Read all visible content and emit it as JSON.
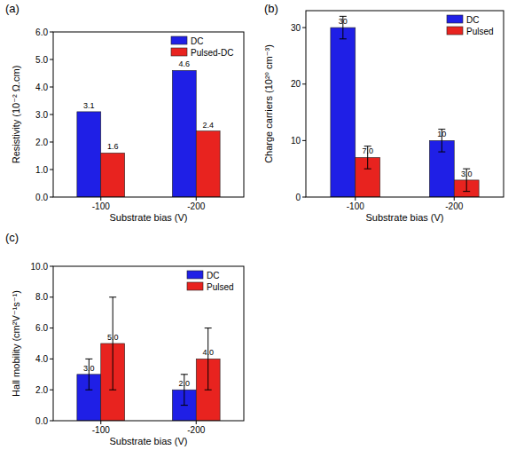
{
  "chart_data": [
    {
      "type": "bar",
      "title": "(a)",
      "x_label": "Substrate bias (V)",
      "y_label": "Resistivity (10⁻² Ω.cm)",
      "categories": [
        "-100",
        "-200"
      ],
      "series": [
        {
          "name": "DC",
          "color": "#1f1fe6",
          "values": [
            3.1,
            4.6
          ]
        },
        {
          "name": "Pulsed-DC",
          "color": "#e8231f",
          "values": [
            1.6,
            2.4
          ]
        }
      ],
      "ylim": [
        0,
        6
      ],
      "yticks": [
        {
          "value": 0,
          "label": "0.0"
        },
        {
          "value": 1,
          "label": "1.0"
        },
        {
          "value": 2,
          "label": "2.0"
        },
        {
          "value": 3,
          "label": "3.0"
        },
        {
          "value": 4,
          "label": "4.0"
        },
        {
          "value": 5,
          "label": "5.0"
        },
        {
          "value": 6,
          "label": "6.0"
        }
      ],
      "legend": "upper right",
      "data_labels": true
    },
    {
      "type": "bar",
      "title": "(b)",
      "x_label": "Substrate bias (V)",
      "y_label": "Charge carriers (10²⁰ cm⁻³)",
      "categories": [
        "-100",
        "-200"
      ],
      "series": [
        {
          "name": "DC",
          "color": "#1f1fe6",
          "values": [
            30,
            10
          ],
          "errors": [
            2,
            2
          ]
        },
        {
          "name": "Pulsed",
          "color": "#e8231f",
          "values": [
            7,
            3
          ],
          "value_labels": [
            "7.0",
            "3.0"
          ],
          "errors": [
            2,
            2
          ]
        }
      ],
      "ylim": [
        0,
        33
      ],
      "yticks": [
        0,
        10,
        20,
        30
      ],
      "legend": "upper right",
      "data_labels": true
    },
    {
      "type": "bar",
      "title": "(c)",
      "x_label": "Substrate bias (V)",
      "y_label": "Hall mobility (cm²V⁻¹s⁻¹)",
      "categories": [
        "-100",
        "-200"
      ],
      "series": [
        {
          "name": "DC",
          "color": "#1f1fe6",
          "values": [
            3,
            2
          ],
          "value_labels": [
            "3.0",
            "2.0"
          ],
          "errors": [
            1,
            1
          ]
        },
        {
          "name": "Pulsed",
          "color": "#e8231f",
          "values": [
            5,
            4
          ],
          "value_labels": [
            "5.0",
            "4.0"
          ],
          "errors": [
            3,
            2
          ]
        }
      ],
      "ylim": [
        0,
        10
      ],
      "yticks": [
        {
          "value": 0,
          "label": "0.0"
        },
        {
          "value": 2,
          "label": "2.0"
        },
        {
          "value": 4,
          "label": "4.0"
        },
        {
          "value": 6,
          "label": "6.0"
        },
        {
          "value": 8,
          "label": "8.0"
        },
        {
          "value": 10,
          "label": "10.0"
        }
      ],
      "legend": "upper right",
      "data_labels": true
    }
  ]
}
